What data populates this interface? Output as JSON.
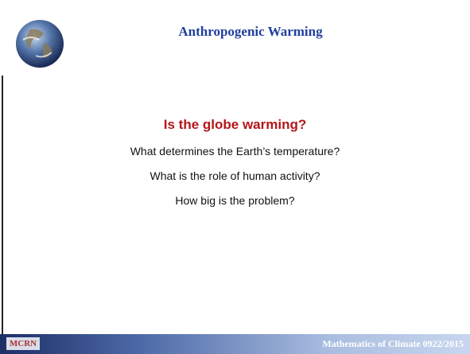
{
  "header": {
    "title": "Anthropogenic Warming"
  },
  "body": {
    "question": "Is the globe warming?",
    "lines": [
      "What determines the Earth’s temperature?",
      "What is the role of human activity?",
      "How big is the problem?"
    ]
  },
  "footer": {
    "logo": "MCRN",
    "text": "Mathematics of Climate  0922/2015"
  }
}
